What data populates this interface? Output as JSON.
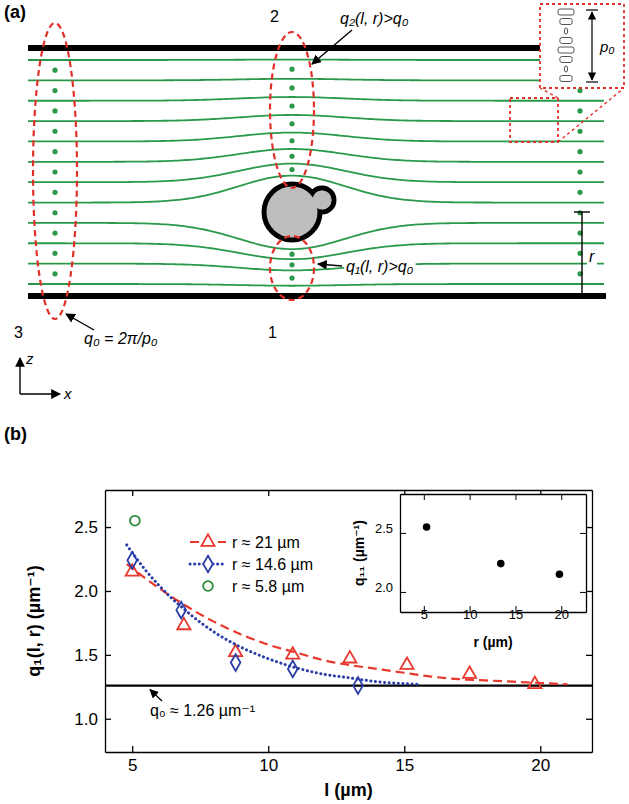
{
  "diagram": {
    "panel": "(a)",
    "regions": [
      {
        "number": "1",
        "annotation": "q₁(l, r)>q₀"
      },
      {
        "number": "2",
        "annotation": "q₂(l, r)>q₀"
      },
      {
        "number": "3",
        "annotation": "q₀ = 2π/p₀"
      }
    ],
    "pitch_label": "p₀",
    "distance_label": "r",
    "axis_labels": {
      "x": "x",
      "z": "z"
    }
  },
  "chart_data": [
    {
      "type": "scatter",
      "panel": "(b)",
      "x_label": "l (µm)",
      "y_label": "q₁(l, r) (µm⁻¹)",
      "xlim": [
        4,
        21.9
      ],
      "ylim": [
        0.74,
        2.79
      ],
      "xticks": [
        5,
        10,
        15,
        20
      ],
      "yticks": [
        {
          "value": 1.0,
          "label": "1.0"
        },
        {
          "value": 1.5,
          "label": "1.5"
        },
        {
          "value": 2.0,
          "label": "2.0"
        },
        {
          "value": 2.5,
          "label": "2.5"
        }
      ],
      "legend": "upper left",
      "reference": {
        "value": 1.26,
        "label": "q₀ ≈ 1.26 µm⁻¹"
      },
      "series": [
        {
          "name": "r ≈ 21 µm",
          "color": "#e8372c",
          "marker": "triangle",
          "line_style": "dashed",
          "x": [
            5.0,
            6.9,
            8.8,
            10.9,
            13.0,
            15.1,
            17.4,
            19.8
          ],
          "values": [
            2.15,
            1.73,
            1.52,
            1.5,
            1.47,
            1.42,
            1.35,
            1.27
          ],
          "fit": {
            "x": [
              4.8,
              6,
              7,
              8,
              9,
              10,
              11,
              12,
              13,
              14,
              15,
              16,
              17,
              18,
              19,
              20,
              21
            ],
            "values": [
              2.21,
              2.02,
              1.88,
              1.76,
              1.66,
              1.58,
              1.52,
              1.46,
              1.42,
              1.39,
              1.36,
              1.33,
              1.31,
              1.3,
              1.29,
              1.28,
              1.27
            ]
          }
        },
        {
          "name": "r ≈ 14.6 µm",
          "color": "#2b3ea8",
          "marker": "diamond",
          "line_style": "dotted",
          "x": [
            5.0,
            6.8,
            8.8,
            10.9,
            13.3
          ],
          "values": [
            2.24,
            1.85,
            1.44,
            1.39,
            1.26
          ],
          "fit": {
            "x": [
              4.8,
              5.5,
              6,
              7,
              8,
              9,
              10,
              11,
              12,
              13,
              14,
              15,
              15.5
            ],
            "values": [
              2.36,
              2.16,
              2.04,
              1.84,
              1.68,
              1.56,
              1.47,
              1.4,
              1.35,
              1.32,
              1.29,
              1.275,
              1.27
            ]
          }
        },
        {
          "name": "r ≈ 5.8 µm",
          "color": "#2e8b3a",
          "marker": "circle",
          "x": [
            5.1
          ],
          "values": [
            2.55
          ]
        }
      ]
    },
    {
      "type": "scatter",
      "x_label": "r (µm)",
      "y_label": "q₁₁ (µm⁻¹)",
      "xlim": [
        2.4,
        22.7
      ],
      "ylim": [
        1.83,
        2.83
      ],
      "xticks": [
        5,
        10,
        15,
        20
      ],
      "yticks": [
        {
          "value": 2.0,
          "label": "2.0"
        },
        {
          "value": 2.5,
          "label": "2.5"
        }
      ],
      "color": "#000000",
      "marker": "circle",
      "x": [
        5.3,
        13.4,
        19.8
      ],
      "values": [
        2.55,
        2.24,
        2.15
      ]
    }
  ]
}
